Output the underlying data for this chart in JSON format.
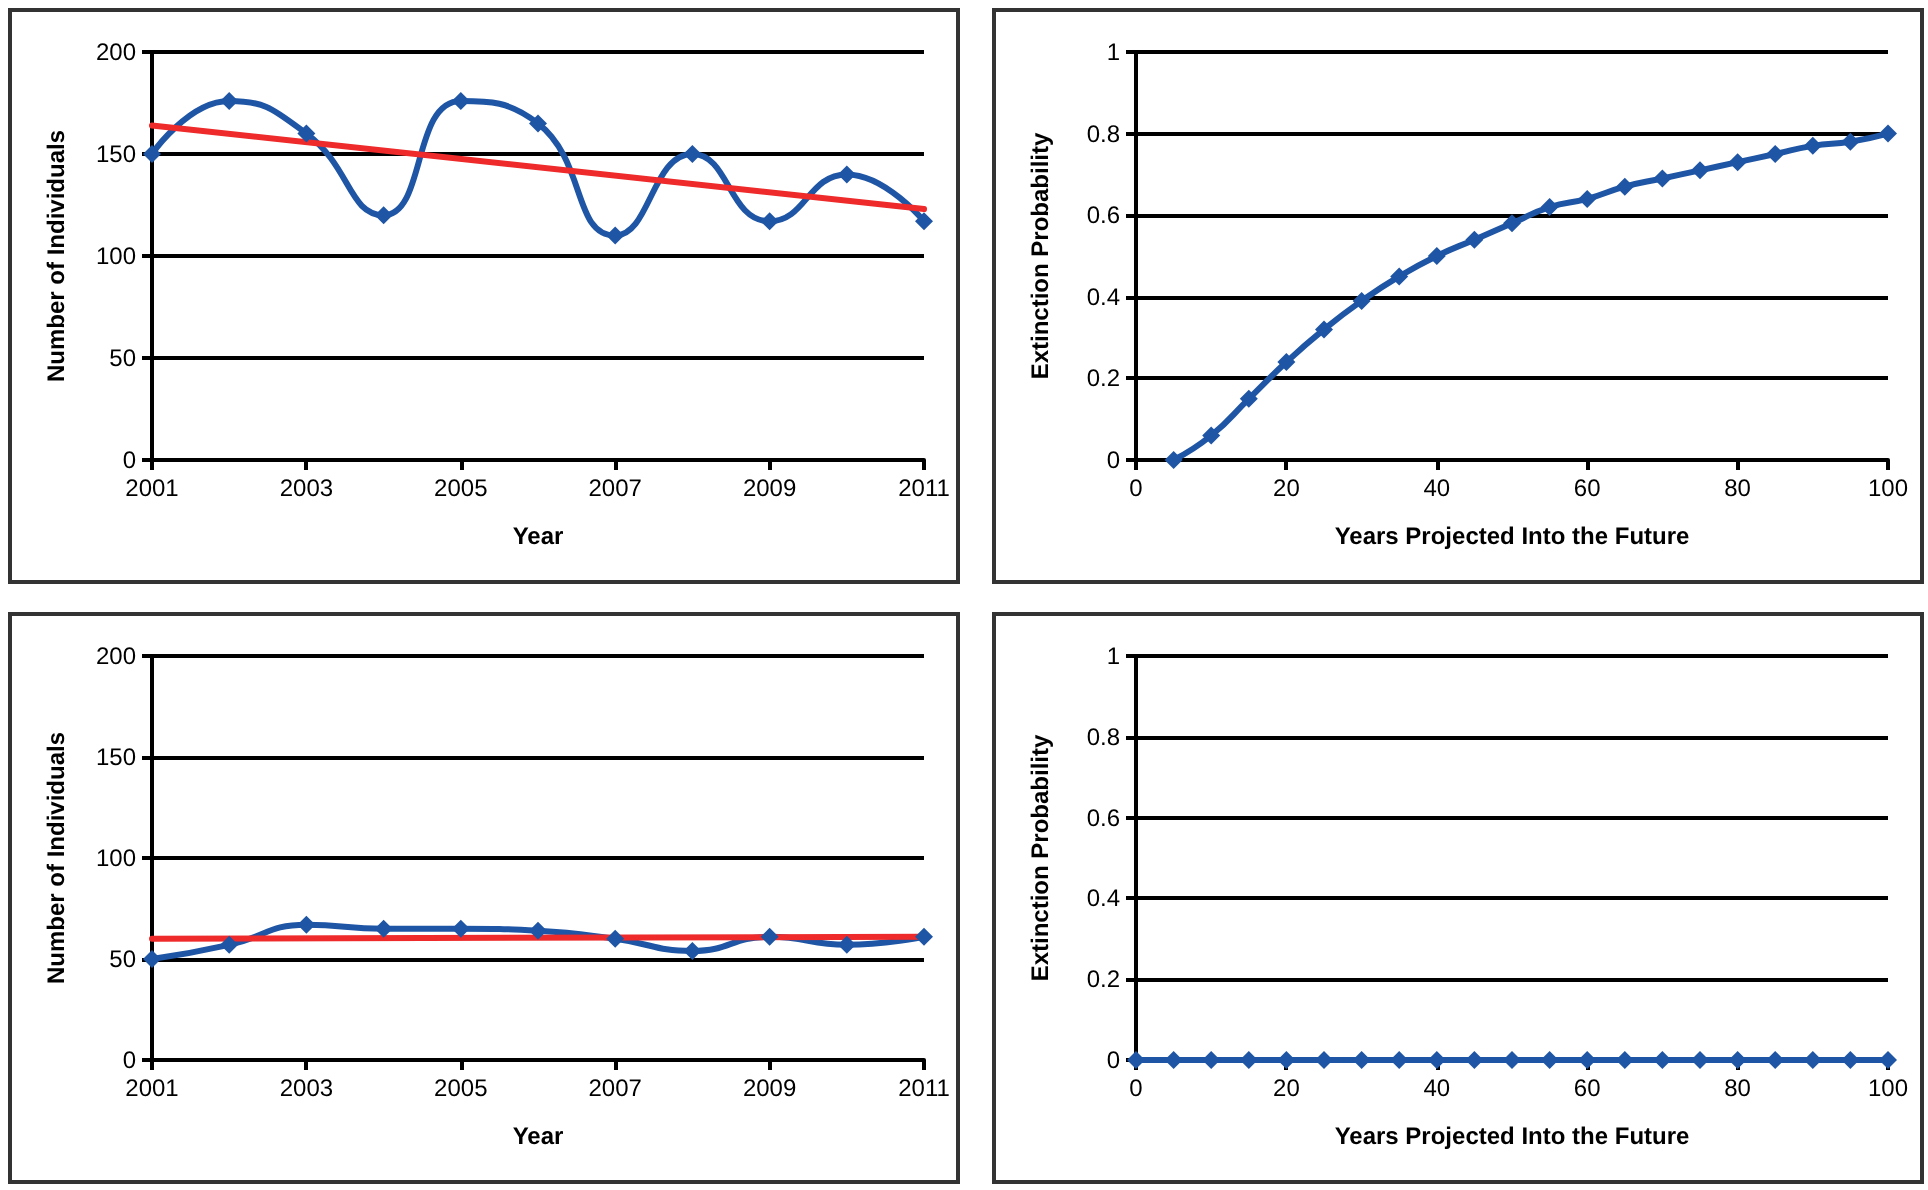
{
  "chart_data": [
    {
      "type": "line",
      "xlabel": "Year",
      "ylabel": "Number of Individuals",
      "xlim": [
        2001,
        2011
      ],
      "xticks": [
        2001,
        2003,
        2005,
        2007,
        2009,
        2011
      ],
      "ylim": [
        0,
        200
      ],
      "yticks": [
        0,
        50,
        100,
        150,
        200
      ],
      "grid": "y",
      "marker": "diamond",
      "line_style": "solid",
      "series": [
        {
          "color": "#1f55a5",
          "x": [
            2001,
            2002,
            2003,
            2004,
            2005,
            2006,
            2007,
            2008,
            2009,
            2010,
            2011
          ],
          "values": [
            150,
            176,
            160,
            120,
            176,
            165,
            110,
            150,
            117,
            140,
            117
          ]
        },
        {
          "type": "line",
          "color": "#ee2a2a",
          "marker": "none",
          "x": [
            2001,
            2011
          ],
          "values": [
            164,
            123
          ]
        }
      ]
    },
    {
      "type": "line",
      "xlabel": "Years Projected Into the Future",
      "ylabel": "Extinction Probability",
      "xlim": [
        0,
        100
      ],
      "xticks": [
        0,
        20,
        40,
        60,
        80,
        100
      ],
      "ylim": [
        0,
        1
      ],
      "yticks": [
        0,
        0.2,
        0.4,
        0.6,
        0.8,
        1
      ],
      "grid": "y",
      "marker": "diamond",
      "line_style": "solid",
      "series": [
        {
          "color": "#1f55a5",
          "x": [
            5,
            10,
            15,
            20,
            25,
            30,
            35,
            40,
            45,
            50,
            55,
            60,
            65,
            70,
            75,
            80,
            85,
            90,
            95,
            100
          ],
          "values": [
            0,
            0.06,
            0.15,
            0.24,
            0.32,
            0.39,
            0.45,
            0.5,
            0.54,
            0.58,
            0.62,
            0.64,
            0.67,
            0.69,
            0.71,
            0.73,
            0.75,
            0.77,
            0.78,
            0.8
          ]
        }
      ]
    },
    {
      "type": "line",
      "xlabel": "Year",
      "ylabel": "Number of Individuals",
      "xlim": [
        2001,
        2011
      ],
      "xticks": [
        2001,
        2003,
        2005,
        2007,
        2009,
        2011
      ],
      "ylim": [
        0,
        200
      ],
      "yticks": [
        0,
        50,
        100,
        150,
        200
      ],
      "grid": "y",
      "marker": "diamond",
      "line_style": "solid",
      "series": [
        {
          "color": "#1f55a5",
          "x": [
            2001,
            2002,
            2003,
            2004,
            2005,
            2006,
            2007,
            2008,
            2009,
            2010,
            2011
          ],
          "values": [
            50,
            57,
            67,
            65,
            65,
            64,
            60,
            54,
            61,
            57,
            61
          ]
        },
        {
          "type": "line",
          "color": "#ee2a2a",
          "marker": "none",
          "x": [
            2001,
            2011
          ],
          "values": [
            60,
            61
          ]
        }
      ]
    },
    {
      "type": "line",
      "xlabel": "Years Projected Into the Future",
      "ylabel": "Extinction Probability",
      "xlim": [
        0,
        100
      ],
      "xticks": [
        0,
        20,
        40,
        60,
        80,
        100
      ],
      "ylim": [
        0,
        1
      ],
      "yticks": [
        0,
        0.2,
        0.4,
        0.6,
        0.8,
        1
      ],
      "grid": "y",
      "marker": "diamond",
      "line_style": "solid",
      "series": [
        {
          "color": "#1f55a5",
          "x": [
            0,
            5,
            10,
            15,
            20,
            25,
            30,
            35,
            40,
            45,
            50,
            55,
            60,
            65,
            70,
            75,
            80,
            85,
            90,
            95,
            100
          ],
          "values": [
            0,
            0,
            0,
            0,
            0,
            0,
            0,
            0,
            0,
            0,
            0,
            0,
            0,
            0,
            0,
            0,
            0,
            0,
            0,
            0,
            0
          ]
        }
      ]
    }
  ]
}
